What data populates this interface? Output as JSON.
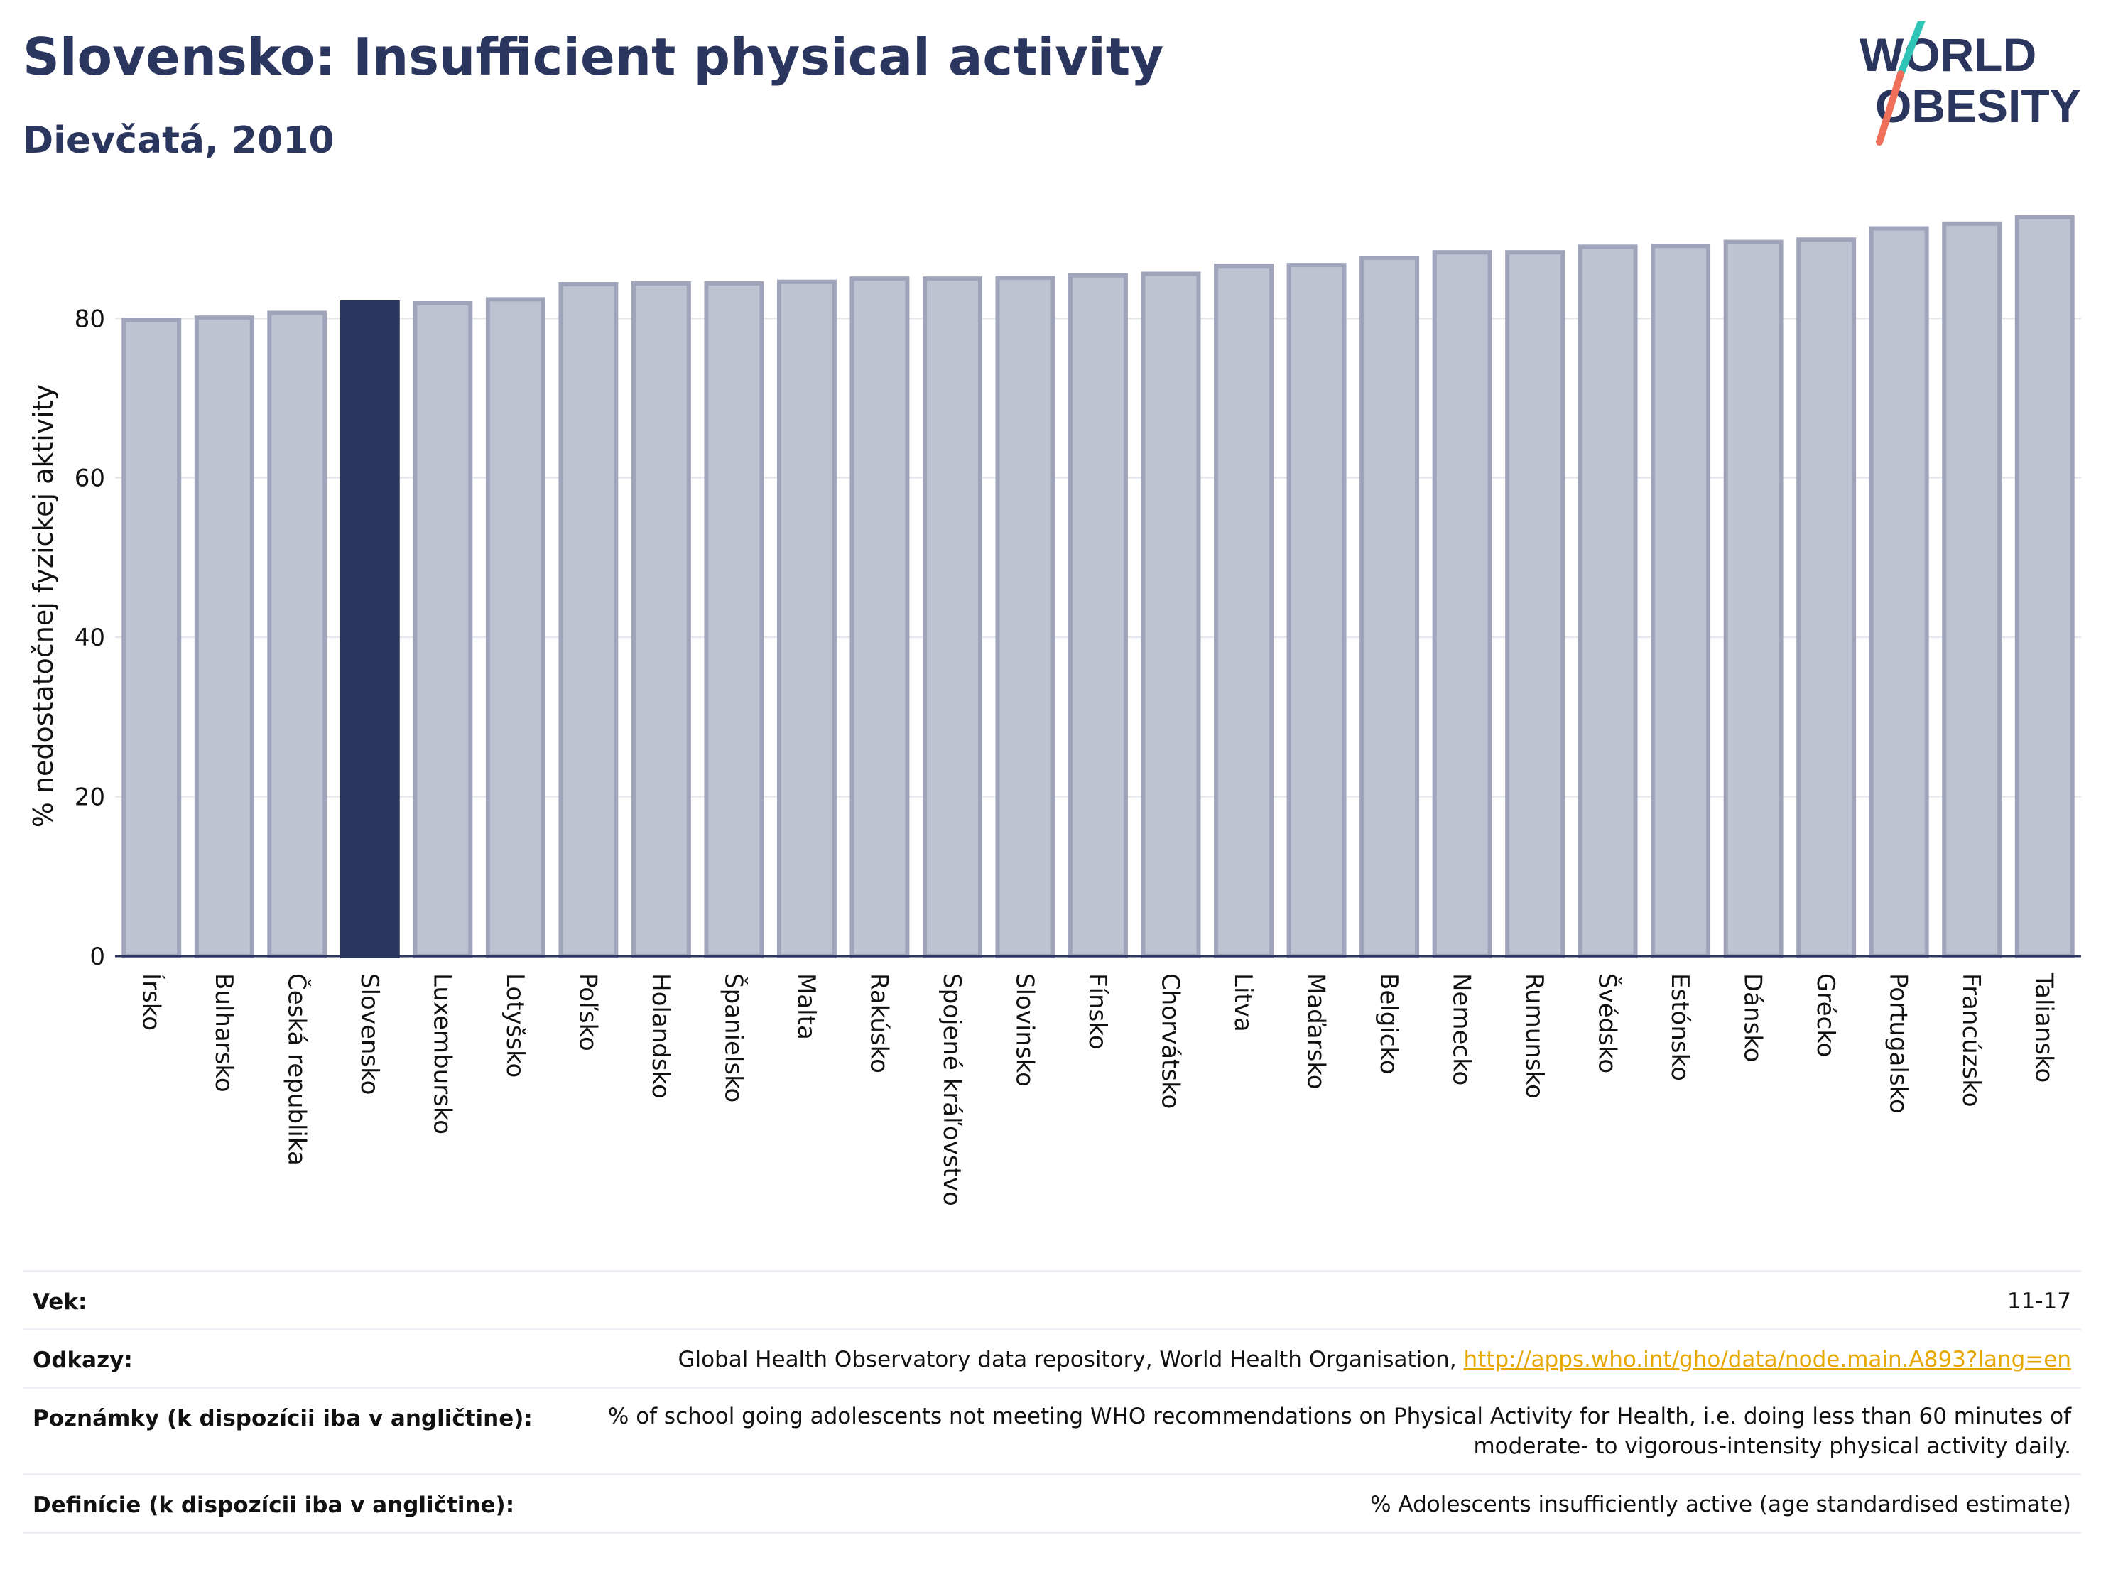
{
  "header": {
    "title": "Slovensko: Insufficient physical activity",
    "subtitle": "Dievčatá, 2010"
  },
  "logo": {
    "line1": "WORLD",
    "line2": "OBESITY"
  },
  "colors": {
    "highlight": "#2b365f",
    "bar_fill": "#bfc2d1",
    "bar_stroke": "#9fa4bb",
    "title": "#2b365f",
    "link": "#e6a800"
  },
  "chart_data": {
    "type": "bar",
    "title": "Slovensko: Insufficient physical activity",
    "subtitle": "Dievčatá, 2010",
    "ylabel": "% nedostatočnej fyzickej aktivity",
    "xlabel": "",
    "ylim": [
      0,
      95
    ],
    "yticks": [
      0,
      20,
      40,
      60,
      80
    ],
    "grid": true,
    "highlight": "Slovensko",
    "categories": [
      "Írsko",
      "Bulharsko",
      "Česká republika",
      "Slovensko",
      "Luxembursko",
      "Lotyšsko",
      "Poľsko",
      "Holandsko",
      "Španielsko",
      "Malta",
      "Rakúsko",
      "Spojené kráľovstvo",
      "Slovinsko",
      "Fínsko",
      "Chorvátsko",
      "Litva",
      "Maďarsko",
      "Belgicko",
      "Nemecko",
      "Rumunsko",
      "Švédsko",
      "Estónsko",
      "Dánsko",
      "Grécko",
      "Portugalsko",
      "Francúzsko",
      "Taliansko"
    ],
    "values": [
      79.8,
      80.1,
      80.7,
      82.0,
      81.9,
      82.4,
      84.3,
      84.4,
      84.4,
      84.6,
      85.0,
      85.0,
      85.1,
      85.4,
      85.6,
      86.6,
      86.7,
      87.6,
      88.3,
      88.3,
      89.0,
      89.1,
      89.6,
      89.9,
      91.3,
      91.9,
      92.7
    ]
  },
  "info": {
    "rows": [
      {
        "label": "Vek:",
        "value": "11-17"
      },
      {
        "label": "Odkazy:",
        "value": "Global Health Observatory data repository, World Health Organisation, ",
        "link": "http://apps.who.int/gho/data/node.main.A893?lang=en"
      },
      {
        "label": "Poznámky (k dispozícii iba v angličtine):",
        "value": "% of school going adolescents not meeting WHO recommendations on Physical Activity for Health, i.e. doing less than 60 minutes of moderate- to vigorous-intensity physical activity daily."
      },
      {
        "label": "Definície (k dispozícii iba v angličtine):",
        "value": "% Adolescents insufficiently active (age standardised estimate)"
      }
    ]
  }
}
